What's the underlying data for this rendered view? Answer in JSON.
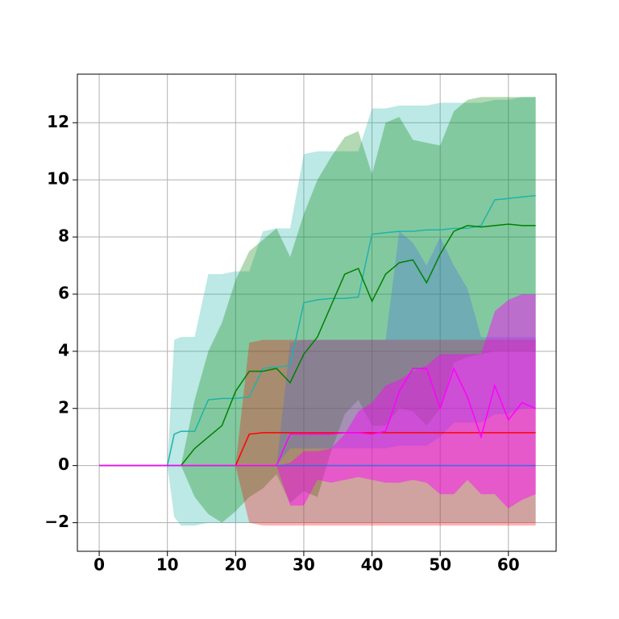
{
  "chart_data": {
    "type": "line",
    "grid": true,
    "xlim": [
      -3.2,
      67.0
    ],
    "ylim": [
      -3.0,
      13.7
    ],
    "xticks": [
      0,
      10,
      20,
      30,
      40,
      50,
      60
    ],
    "yticks": [
      {
        "value": -2,
        "label": "−2"
      },
      0,
      2,
      4,
      6,
      8,
      10,
      12
    ],
    "x": [
      0,
      2,
      4,
      6,
      8,
      10,
      11,
      12,
      14,
      16,
      18,
      20,
      22,
      24,
      26,
      28,
      30,
      32,
      34,
      36,
      38,
      40,
      42,
      44,
      46,
      48,
      50,
      52,
      54,
      56,
      58,
      60,
      62,
      64
    ],
    "series": [
      {
        "color": "#20b2aa",
        "band_opacity": 0.3,
        "values": [
          0,
          0,
          0,
          0,
          0,
          0,
          1.1,
          1.2,
          1.2,
          2.3,
          2.35,
          2.35,
          2.4,
          3.4,
          3.45,
          3.5,
          5.7,
          5.8,
          5.85,
          5.85,
          5.9,
          8.1,
          8.15,
          8.2,
          8.2,
          8.25,
          8.25,
          8.3,
          8.3,
          8.4,
          9.3,
          9.35,
          9.4,
          9.45
        ],
        "lower": [
          null,
          null,
          null,
          null,
          null,
          0,
          -1.8,
          -2.1,
          -2.1,
          -2.0,
          -2.0,
          -2.0,
          -2.0,
          -2.0,
          -2.0,
          -2.0,
          -2.0,
          -2.0,
          -2.0,
          -2.0,
          -2.0,
          -2.0,
          -2.0,
          -2.0,
          -2.0,
          -2.0,
          -2.0,
          -2.0,
          -2.0,
          -2.0,
          -2.0,
          -2.0,
          -2.0,
          -2.0
        ],
        "upper": [
          null,
          null,
          null,
          null,
          null,
          0,
          4.4,
          4.5,
          4.5,
          6.7,
          6.7,
          6.8,
          6.8,
          8.2,
          8.3,
          8.3,
          10.9,
          11.0,
          11.0,
          11.0,
          11.0,
          12.5,
          12.5,
          12.6,
          12.6,
          12.6,
          12.7,
          12.7,
          12.7,
          12.7,
          12.8,
          12.8,
          12.9,
          12.9
        ]
      },
      {
        "color": "#008000",
        "band_opacity": 0.3,
        "values": [
          0,
          0,
          0,
          0,
          0,
          0,
          0,
          0,
          0.6,
          1.0,
          1.4,
          2.6,
          3.3,
          3.3,
          3.4,
          2.9,
          3.9,
          4.5,
          5.6,
          6.7,
          6.9,
          5.75,
          6.7,
          7.1,
          7.2,
          6.4,
          7.4,
          8.2,
          8.4,
          8.35,
          8.4,
          8.45,
          8.4,
          8.4
        ],
        "lower": [
          null,
          null,
          null,
          null,
          null,
          null,
          null,
          0,
          -1.1,
          -1.7,
          -2.0,
          -1.6,
          -1.1,
          -0.8,
          -0.3,
          -1.3,
          -0.9,
          -1.1,
          0.5,
          1.8,
          2.3,
          1.4,
          1.4,
          2.0,
          1.9,
          1.4,
          2.0,
          3.6,
          3.8,
          3.9,
          4.0,
          4.0,
          4.0,
          4.0
        ],
        "upper": [
          null,
          null,
          null,
          null,
          null,
          null,
          null,
          0,
          2.3,
          4.0,
          5.0,
          6.5,
          7.5,
          7.9,
          8.3,
          7.3,
          8.8,
          10.0,
          10.8,
          11.5,
          11.7,
          10.2,
          12.0,
          12.2,
          11.4,
          11.3,
          11.2,
          12.4,
          12.8,
          12.9,
          12.9,
          12.9,
          12.9,
          12.9
        ]
      },
      {
        "color": "#ff0000",
        "band_opacity": 0.3,
        "values": [
          0,
          0,
          0,
          0,
          0,
          0,
          0,
          0,
          0,
          0,
          0,
          0,
          1.1,
          1.15,
          1.15,
          1.15,
          1.15,
          1.15,
          1.15,
          1.15,
          1.15,
          1.15,
          1.15,
          1.15,
          1.15,
          1.15,
          1.15,
          1.15,
          1.15,
          1.15,
          1.15,
          1.15,
          1.15,
          1.15
        ],
        "lower": [
          null,
          null,
          null,
          null,
          null,
          null,
          null,
          null,
          null,
          null,
          null,
          0,
          -2.0,
          -2.1,
          -2.1,
          -2.1,
          -2.1,
          -2.1,
          -2.1,
          -2.1,
          -2.1,
          -2.1,
          -2.1,
          -2.1,
          -2.1,
          -2.1,
          -2.1,
          -2.1,
          -2.1,
          -2.1,
          -2.1,
          -2.1,
          -2.1,
          -2.1
        ],
        "upper": [
          null,
          null,
          null,
          null,
          null,
          null,
          null,
          null,
          null,
          null,
          null,
          0,
          4.3,
          4.4,
          4.4,
          4.4,
          4.4,
          4.4,
          4.4,
          4.4,
          4.4,
          4.4,
          4.4,
          4.4,
          4.4,
          4.4,
          4.4,
          4.4,
          4.4,
          4.4,
          4.4,
          4.4,
          4.4,
          4.4
        ]
      },
      {
        "color": "#4169e1",
        "band_opacity": 0.3,
        "values": [
          0,
          0,
          0,
          0,
          0,
          0,
          0,
          0,
          0,
          0,
          0,
          0,
          0,
          0,
          0,
          0,
          0,
          0,
          0,
          0,
          0,
          0,
          0,
          0,
          0,
          0,
          0,
          0,
          0,
          0,
          0,
          0,
          0,
          0
        ],
        "lower": [
          null,
          null,
          null,
          null,
          null,
          null,
          null,
          null,
          null,
          null,
          null,
          null,
          null,
          null,
          0,
          0.6,
          0.6,
          0.6,
          0.6,
          0.6,
          0.6,
          0.6,
          0.6,
          0.7,
          0.7,
          0.7,
          1.0,
          1.5,
          1.5,
          1.5,
          1.8,
          1.8,
          2.0,
          2.0
        ],
        "upper": [
          null,
          null,
          null,
          null,
          null,
          null,
          null,
          null,
          null,
          null,
          null,
          null,
          null,
          null,
          0,
          4.3,
          4.4,
          4.4,
          4.4,
          4.4,
          4.4,
          4.4,
          4.4,
          8.2,
          7.8,
          7.0,
          8.0,
          7.0,
          6.2,
          4.5,
          4.5,
          4.5,
          4.5,
          4.5
        ]
      },
      {
        "color": "#ff00ff",
        "band_opacity": 0.45,
        "values": [
          0,
          0,
          0,
          0,
          0,
          0,
          0,
          0,
          0,
          0,
          0,
          0,
          0,
          0,
          0,
          1.1,
          1.1,
          1.1,
          1.1,
          1.15,
          1.15,
          1.1,
          1.2,
          2.6,
          3.4,
          3.4,
          2.0,
          3.4,
          2.4,
          1.0,
          2.8,
          1.6,
          2.2,
          2.0
        ],
        "lower": [
          null,
          null,
          null,
          null,
          null,
          null,
          null,
          null,
          null,
          null,
          null,
          null,
          null,
          null,
          0,
          -1.4,
          -1.4,
          -0.5,
          -0.6,
          -0.5,
          -0.4,
          -0.5,
          -0.6,
          -0.6,
          -0.5,
          -0.6,
          -1.0,
          -1.0,
          -0.5,
          -1.0,
          -1.0,
          -1.5,
          -1.2,
          -1.0
        ],
        "upper": [
          null,
          null,
          null,
          null,
          null,
          null,
          null,
          null,
          null,
          null,
          null,
          null,
          null,
          null,
          0,
          0.1,
          0.5,
          0.5,
          0.6,
          1.1,
          1.9,
          2.2,
          2.8,
          3.0,
          3.3,
          3.5,
          3.9,
          3.9,
          3.9,
          3.9,
          5.4,
          5.8,
          6.0,
          6.0
        ]
      }
    ]
  }
}
